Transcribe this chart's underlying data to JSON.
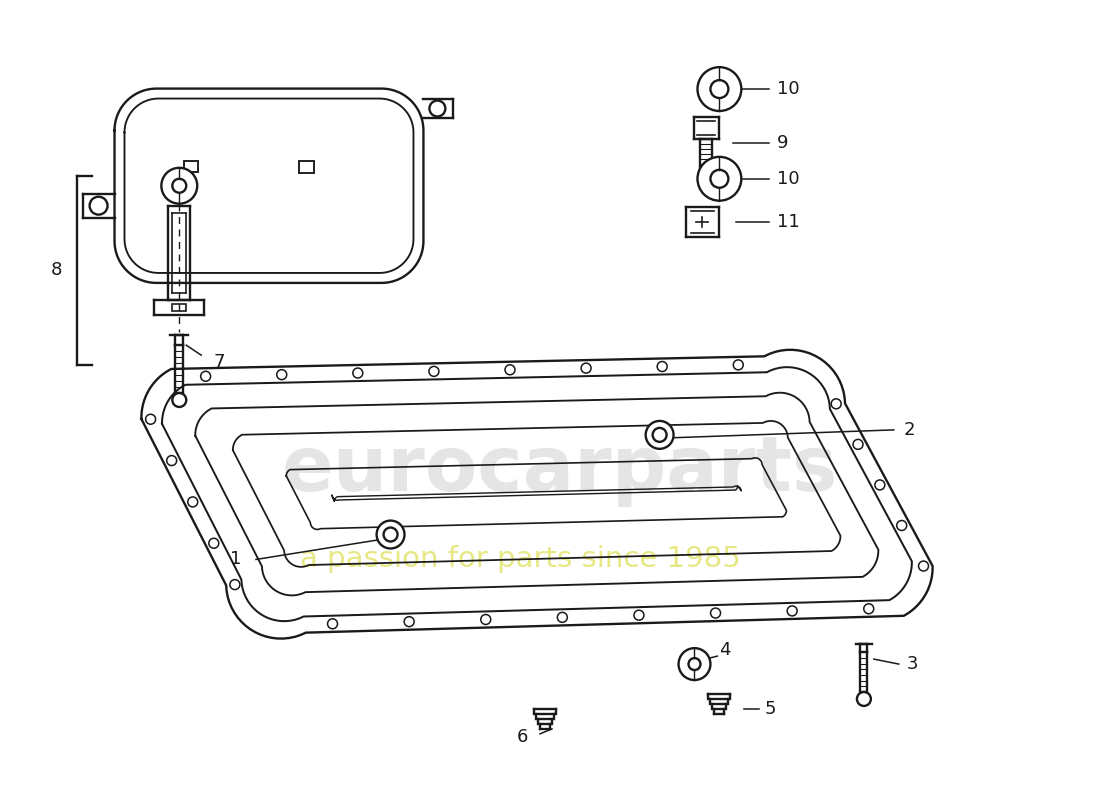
{
  "bg_color": "#ffffff",
  "lc": "#1a1a1a",
  "fs": 13,
  "wm_main": "eurocarparts",
  "wm_sub": "a passion for parts since 1985",
  "wm_main_color": "#c0c0c0",
  "wm_sub_color": "#d4d420",
  "wm_main_alpha": 0.4,
  "wm_sub_alpha": 0.55
}
